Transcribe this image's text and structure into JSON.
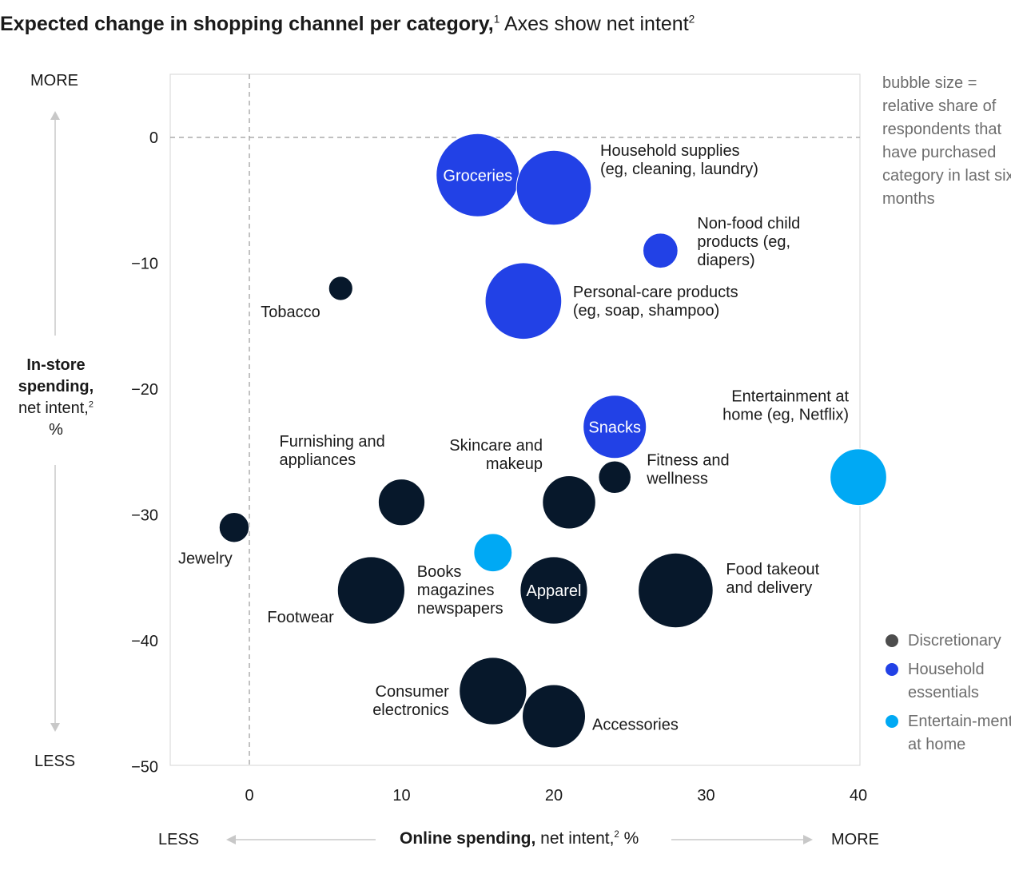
{
  "title": {
    "bold": "Expected change in shopping channel per category,",
    "bold_sup": "1",
    "rest": " Axes show net intent",
    "rest_sup": "2"
  },
  "y_axis_label": {
    "bold1": "In-store",
    "bold2": "spending,",
    "line3": "net intent,",
    "line3_sup": "2",
    "line4": "%",
    "more": "MORE",
    "less": "LESS"
  },
  "x_axis_label": {
    "bold": "Online spending,",
    "rest": " net intent,",
    "sup": "2",
    "unit": " %",
    "less": "LESS",
    "more": "MORE"
  },
  "size_note": "bubble size = relative share of respondents that have purchased category in last six months",
  "legend": [
    {
      "label": "Discretionary",
      "color": "#4d4d4d"
    },
    {
      "label": "Household essentials",
      "color": "#2241e6"
    },
    {
      "label": "Entertain-ment at home",
      "color": "#00a9f4"
    }
  ],
  "chart_data": {
    "type": "scatter",
    "subtype": "bubble",
    "xlim": [
      -5,
      40
    ],
    "ylim": [
      -50,
      5
    ],
    "xticks": [
      0,
      10,
      20,
      30,
      40
    ],
    "yticks": [
      0,
      -10,
      -20,
      -30,
      -40,
      -50
    ],
    "xtick_labels": [
      "0",
      "10",
      "20",
      "30",
      "40"
    ],
    "ytick_labels": [
      "0",
      "−10",
      "−20",
      "−30",
      "−40",
      "−50"
    ],
    "reference_lines": {
      "x": 0,
      "y": 0
    },
    "group_colors": {
      "discretionary": "#07182b",
      "household": "#2241e6",
      "entertainment": "#00a9f4"
    },
    "points": [
      {
        "label": "Groceries",
        "lines": [
          "Groceries"
        ],
        "x": 15,
        "y": -3,
        "size": 1.0,
        "group": "household",
        "label_inside": true
      },
      {
        "label": "Household supplies (eg, cleaning, laundry)",
        "lines": [
          "Household supplies",
          "(eg, cleaning, laundry)"
        ],
        "x": 20,
        "y": -4,
        "size": 0.9,
        "group": "household"
      },
      {
        "label": "Non-food child products (eg, diapers)",
        "lines": [
          "Non-food child",
          "products (eg,",
          "diapers)"
        ],
        "x": 27,
        "y": -9,
        "size": 0.42,
        "group": "household"
      },
      {
        "label": "Personal-care products (eg, soap, shampoo)",
        "lines": [
          "Personal-care products",
          "(eg, soap, shampoo)"
        ],
        "x": 18,
        "y": -13,
        "size": 0.92,
        "group": "household"
      },
      {
        "label": "Snacks",
        "lines": [
          "Snacks"
        ],
        "x": 24,
        "y": -23,
        "size": 0.76,
        "group": "household",
        "label_inside": true
      },
      {
        "label": "Tobacco",
        "lines": [
          "Tobacco"
        ],
        "x": 6,
        "y": -12,
        "size": 0.29,
        "group": "discretionary"
      },
      {
        "label": "Entertainment at home (eg, Netflix)",
        "lines": [
          "Entertainment at",
          "home (eg, Netflix)"
        ],
        "x": 40,
        "y": -27,
        "size": 0.68,
        "group": "entertainment"
      },
      {
        "label": "Fitness and wellness",
        "lines": [
          "Fitness and",
          "wellness"
        ],
        "x": 24,
        "y": -27,
        "size": 0.39,
        "group": "discretionary"
      },
      {
        "label": "Skincare and makeup",
        "lines": [
          "Skincare and",
          "makeup"
        ],
        "x": 21,
        "y": -29,
        "size": 0.64,
        "group": "discretionary"
      },
      {
        "label": "Furnishing and appliances",
        "lines": [
          "Furnishing and",
          "appliances"
        ],
        "x": 10,
        "y": -29,
        "size": 0.56,
        "group": "discretionary"
      },
      {
        "label": "Jewelry",
        "lines": [
          "Jewelry"
        ],
        "x": -1,
        "y": -31,
        "size": 0.36,
        "group": "discretionary"
      },
      {
        "label": "Books magazines newspapers",
        "lines": [
          "Books",
          "magazines",
          "newspapers"
        ],
        "x": 16,
        "y": -33,
        "size": 0.46,
        "group": "entertainment"
      },
      {
        "label": "Footwear",
        "lines": [
          "Footwear"
        ],
        "x": 8,
        "y": -36,
        "size": 0.81,
        "group": "discretionary"
      },
      {
        "label": "Apparel",
        "lines": [
          "Apparel"
        ],
        "x": 20,
        "y": -36,
        "size": 0.81,
        "group": "discretionary",
        "label_inside": true
      },
      {
        "label": "Food takeout and delivery",
        "lines": [
          "Food takeout",
          "and delivery"
        ],
        "x": 28,
        "y": -36,
        "size": 0.9,
        "group": "discretionary"
      },
      {
        "label": "Consumer electronics",
        "lines": [
          "Consumer",
          "electronics"
        ],
        "x": 16,
        "y": -44,
        "size": 0.81,
        "group": "discretionary"
      },
      {
        "label": "Accessories",
        "lines": [
          "Accessories"
        ],
        "x": 20,
        "y": -46,
        "size": 0.76,
        "group": "discretionary"
      }
    ]
  }
}
